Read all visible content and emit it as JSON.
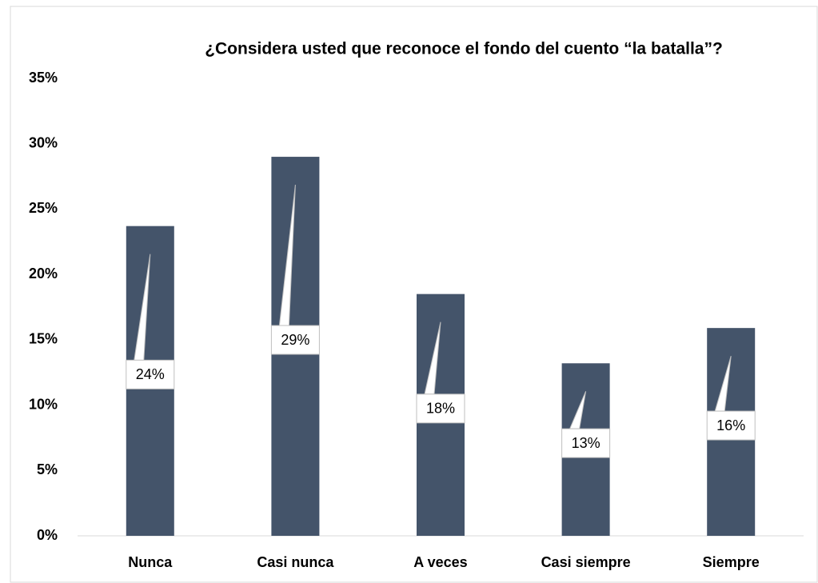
{
  "chart_data": {
    "type": "bar",
    "title": "¿Considera usted que reconoce el fondo del cuento “la batalla”?",
    "categories": [
      "Nunca",
      "Casi nunca",
      "A veces",
      "Casi siempre",
      "Siempre"
    ],
    "values": [
      23.7,
      29,
      18.5,
      13.2,
      15.9
    ],
    "value_labels": [
      "24%",
      "29%",
      "18%",
      "13%",
      "16%"
    ],
    "color": "#44546a",
    "ylim": [
      0,
      35
    ],
    "yticks": [
      {
        "value": 0,
        "label": "0%"
      },
      {
        "value": 5,
        "label": "5%"
      },
      {
        "value": 10,
        "label": "10%"
      },
      {
        "value": 15,
        "label": "15%"
      },
      {
        "value": 20,
        "label": "20%"
      },
      {
        "value": 25,
        "label": "25%"
      },
      {
        "value": 30,
        "label": "30%"
      },
      {
        "value": 35,
        "label": "35%"
      }
    ],
    "grid": false
  }
}
